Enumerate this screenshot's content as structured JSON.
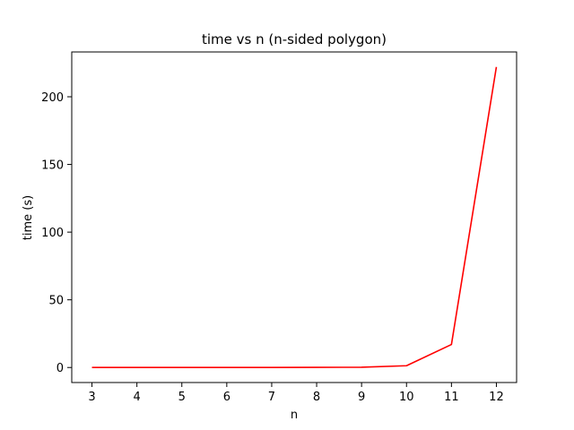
{
  "chart_data": {
    "type": "line",
    "title": "time vs n (n-sided polygon)",
    "xlabel": "n",
    "ylabel": "time (s)",
    "x": [
      3,
      4,
      5,
      6,
      7,
      8,
      9,
      10,
      11,
      12
    ],
    "series": [
      {
        "values": [
          0.01,
          0.01,
          0.02,
          0.03,
          0.05,
          0.08,
          0.2,
          1.3,
          17,
          222
        ],
        "color": "#ff0000"
      }
    ],
    "xticks": [
      3,
      4,
      5,
      6,
      7,
      8,
      9,
      10,
      11,
      12
    ],
    "yticks": [
      0,
      50,
      100,
      150,
      200
    ],
    "xlim": [
      2.55,
      12.45
    ],
    "ylim": [
      -11.1,
      233.1
    ],
    "grid": false,
    "legend": "none"
  }
}
